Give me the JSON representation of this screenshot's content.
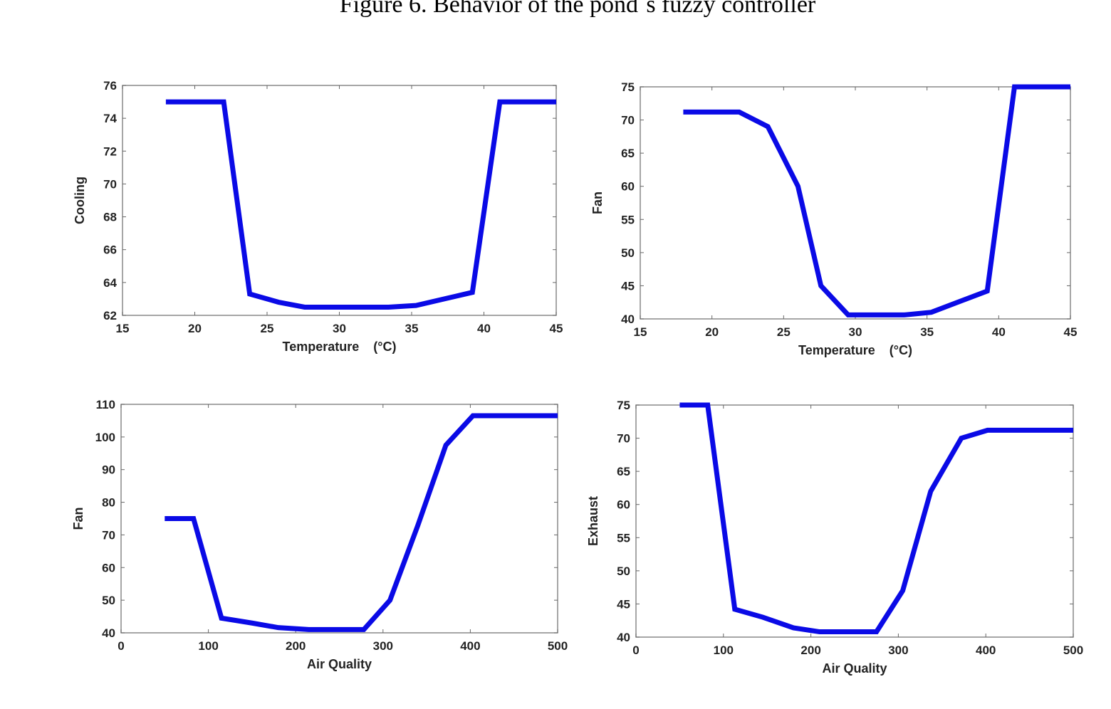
{
  "figure_title": "Figure 6. Behavior of the pond´s fuzzy controller",
  "chart_data": [
    {
      "type": "line",
      "xlabel": "Temperature    (°C)",
      "ylabel": "Cooling",
      "xlim": [
        15,
        45
      ],
      "ylim": [
        62,
        76
      ],
      "xticks": [
        15,
        20,
        25,
        30,
        35,
        40,
        45
      ],
      "yticks": [
        62,
        64,
        66,
        68,
        70,
        72,
        74,
        76
      ],
      "color": "#0a0ae6",
      "x": [
        18,
        22,
        23.8,
        25.8,
        27.6,
        33.4,
        35.3,
        39.2,
        41.1,
        45
      ],
      "y": [
        75,
        75,
        63.3,
        62.8,
        62.5,
        62.5,
        62.6,
        63.4,
        75,
        75
      ]
    },
    {
      "type": "line",
      "xlabel": "Temperature    (°C)",
      "ylabel": "Fan",
      "xlim": [
        15,
        45
      ],
      "ylim": [
        40,
        75
      ],
      "xticks": [
        15,
        20,
        25,
        30,
        35,
        40,
        45
      ],
      "yticks": [
        40,
        45,
        50,
        55,
        60,
        65,
        70,
        75
      ],
      "color": "#0a0ae6",
      "x": [
        18,
        21.9,
        23.9,
        26,
        27.6,
        29.5,
        33.4,
        35.3,
        37,
        39.2,
        41.1,
        45
      ],
      "y": [
        71.2,
        71.2,
        69,
        60,
        45,
        40.6,
        40.6,
        41,
        42.4,
        44.2,
        75,
        75
      ]
    },
    {
      "type": "line",
      "xlabel": "Air Quality",
      "ylabel": "Fan",
      "xlim": [
        0,
        500
      ],
      "ylim": [
        40,
        110
      ],
      "xticks": [
        0,
        100,
        200,
        300,
        400,
        500
      ],
      "yticks": [
        40,
        50,
        60,
        70,
        80,
        90,
        100,
        110
      ],
      "color": "#0a0ae6",
      "x": [
        50,
        83,
        115,
        150,
        180,
        215,
        278,
        308,
        340,
        372,
        403,
        500
      ],
      "y": [
        75,
        75,
        44.5,
        43,
        41.6,
        41,
        41,
        50,
        73,
        97.5,
        106.5,
        106.5
      ]
    },
    {
      "type": "line",
      "xlabel": "Air Quality",
      "ylabel": "Exhaust",
      "xlim": [
        0,
        500
      ],
      "ylim": [
        40,
        75
      ],
      "xticks": [
        0,
        100,
        200,
        300,
        400,
        500
      ],
      "yticks": [
        40,
        45,
        50,
        55,
        60,
        65,
        70,
        75
      ],
      "color": "#0a0ae6",
      "x": [
        50,
        82,
        113,
        145,
        180,
        210,
        275,
        305,
        337,
        372,
        402,
        500
      ],
      "y": [
        75,
        75,
        44.2,
        43,
        41.4,
        40.8,
        40.8,
        47,
        62,
        70,
        71.2,
        71.2
      ]
    }
  ]
}
